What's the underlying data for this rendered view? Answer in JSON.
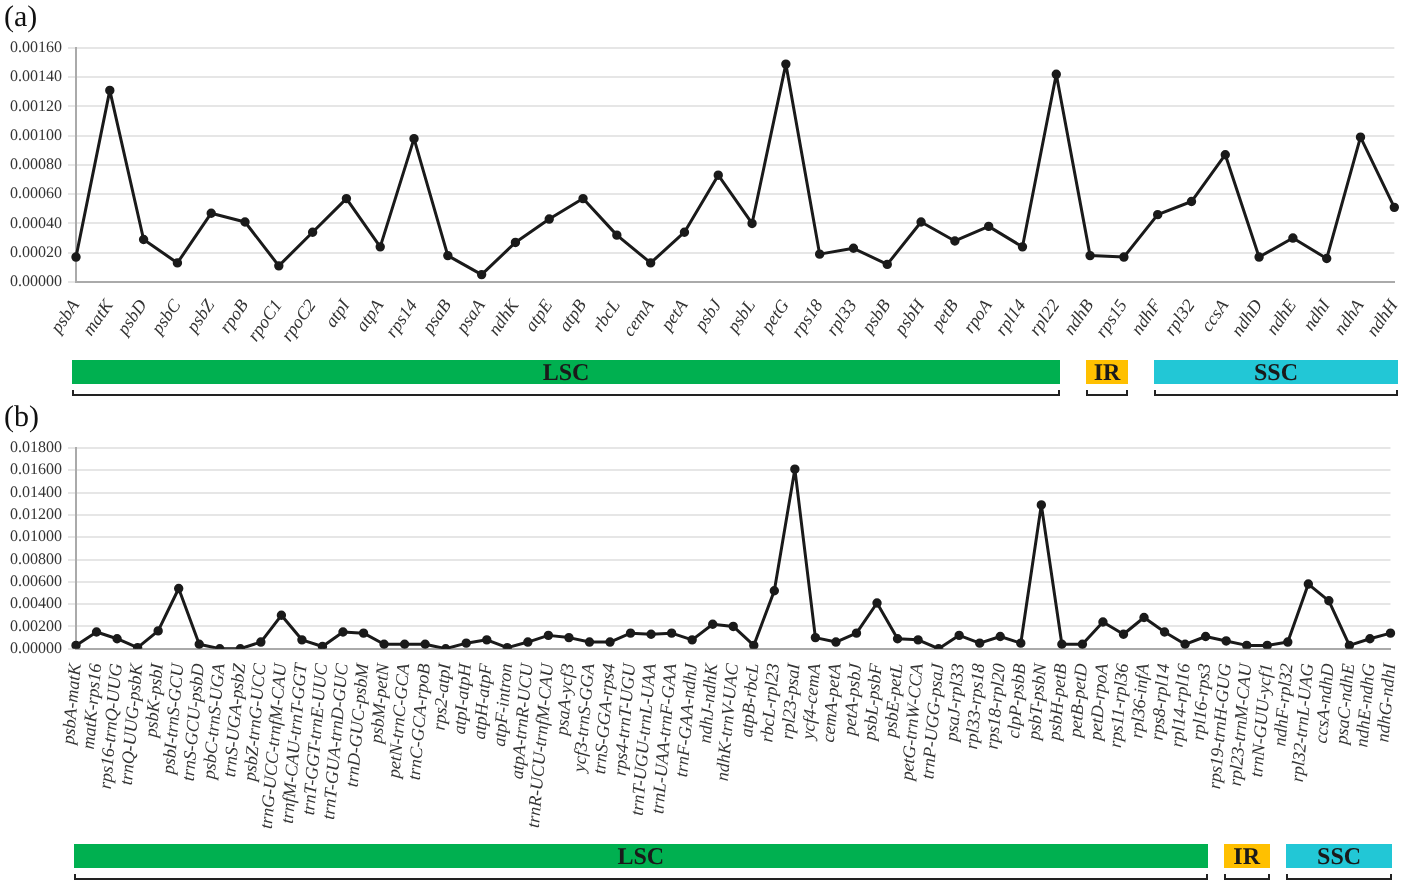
{
  "chart_data": [
    {
      "type": "line",
      "title": "(a)",
      "categories": [
        "psbA",
        "matK",
        "psbD",
        "psbC",
        "psbZ",
        "rpoB",
        "rpoC1",
        "rpoC2",
        "atpI",
        "atpA",
        "rps14",
        "psaB",
        "psaA",
        "ndhK",
        "atpE",
        "atpB",
        "rbcL",
        "cemA",
        "petA",
        "psbJ",
        "psbL",
        "petG",
        "rps18",
        "rpl33",
        "psbB",
        "psbH",
        "petB",
        "rpoA",
        "rpl14",
        "rpl22",
        "ndhB",
        "rps15",
        "ndhF",
        "rpl32",
        "ccsA",
        "ndhD",
        "ndhE",
        "ndhI",
        "ndhA",
        "ndhH"
      ],
      "series": [
        {
          "color": "#1a1a1a",
          "values": [
            0.00017,
            0.00131,
            0.00029,
            0.00013,
            0.00047,
            0.00041,
            0.00011,
            0.00034,
            0.00057,
            0.00024,
            0.00098,
            0.00018,
            5e-05,
            0.00027,
            0.00043,
            0.00057,
            0.00032,
            0.00013,
            0.00034,
            0.00073,
            0.0004,
            0.00149,
            0.00019,
            0.00023,
            0.00012,
            0.00041,
            0.00028,
            0.00038,
            0.00024,
            0.00142,
            0.00018,
            0.00017,
            0.00046,
            0.00055,
            0.00087,
            0.00017,
            0.0003,
            0.00016,
            0.00099,
            0.00051
          ]
        }
      ],
      "ylim": [
        0,
        0.0016
      ],
      "yticks": [
        {
          "value": 0,
          "label": "0.00000"
        },
        {
          "value": 0.0002,
          "label": "0.00020"
        },
        {
          "value": 0.0004,
          "label": "0.00040"
        },
        {
          "value": 0.0006,
          "label": "0.00060"
        },
        {
          "value": 0.0008,
          "label": "0.00080"
        },
        {
          "value": 0.001,
          "label": "0.00100"
        },
        {
          "value": 0.0012,
          "label": "0.00120"
        },
        {
          "value": 0.0014,
          "label": "0.00140"
        },
        {
          "value": 0.0016,
          "label": "0.00160"
        }
      ],
      "grid": "y",
      "legend": false,
      "marker": "circle",
      "line_style": "solid",
      "annotations": [
        "LSC",
        "IR",
        "SSC"
      ]
    },
    {
      "type": "line",
      "title": "(b)",
      "categories": [
        "psbA-matK",
        "matK-rps16",
        "rps16-trnQ-UUG",
        "trnQ-UUG-psbK",
        "psbK-psbI",
        "psbI-trnS-GCU",
        "trnS-GCU-psbD",
        "psbC-trnS-UGA",
        "trnS-UGA-psbZ",
        "psbZ-trnG-UCC",
        "trnG-UCC-trnfM-CAU",
        "trnfM-CAU-trnT-GGT",
        "trnT-GGT-trnE-UUC",
        "trnT-GUA-trnD-GUC",
        "trnD-GUC-psbM",
        "psbM-petN",
        "petN-trnC-GCA",
        "trnC-GCA-rpoB",
        "rps2-atpI",
        "atpI-atpH",
        "atpH-atpF",
        "atpF-intron",
        "atpA-trnR-UCU",
        "trnR-UCU-trnfM-CAU",
        "psaA-ycf3",
        "ycf3-trnS-GGA",
        "trnS-GGA-rps4",
        "rps4-trnT-UGU",
        "trnT-UGU-trnL-UAA",
        "trnL-UAA-trnF-GAA",
        "trnF-GAA-ndhJ",
        "ndhJ-ndhK",
        "ndhK-trnV-UAC",
        "atpB-rbcL",
        "rbcL-rpl23",
        "rpl23-psaI",
        "ycf4-cemA",
        "cemA-petA",
        "petA-psbJ",
        "psbL-psbF",
        "psbE-petL",
        "petG-trnW-CCA",
        "trnP-UGG-psaJ",
        "psaJ-rpl33",
        "rpl33-rps18",
        "rps18-rpl20",
        "clpP-psbB",
        "psbT-psbN",
        "psbH-petB",
        "petB-petD",
        "petD-rpoA",
        "rps11-rpl36",
        "rpl36-infA",
        "rps8-rpl14",
        "rpl14-rpl16",
        "rpl16-rps3",
        "rps19-trnH-GUG",
        "rpl23-trnM-CAU",
        "trnN-GUU-ycf1",
        "ndhF-rpl32",
        "rpl32-trnL-UAG",
        "ccsA-ndhD",
        "psaC-ndhE",
        "ndhE-ndhG",
        "ndhG-ndhI"
      ],
      "series": [
        {
          "color": "#1a1a1a",
          "values": [
            0.0003,
            0.0015,
            0.0009,
            0.0001,
            0.0016,
            0.0054,
            0.0004,
            0.0,
            0.0,
            0.0006,
            0.003,
            0.0008,
            0.0002,
            0.0015,
            0.0014,
            0.0004,
            0.0004,
            0.0004,
            0.0,
            0.0005,
            0.0008,
            0.0001,
            0.0006,
            0.0012,
            0.001,
            0.0006,
            0.0006,
            0.0014,
            0.0013,
            0.0014,
            0.0008,
            0.0022,
            0.002,
            0.0003,
            0.0052,
            0.0161,
            0.001,
            0.0006,
            0.0014,
            0.0041,
            0.0009,
            0.0008,
            0.0,
            0.0012,
            0.0005,
            0.0011,
            0.0005,
            0.0129,
            0.0004,
            0.0004,
            0.0024,
            0.0013,
            0.0028,
            0.0015,
            0.0004,
            0.0011,
            0.0007,
            0.0003,
            0.0003,
            0.0006,
            0.0058,
            0.0043,
            0.0003,
            0.0009,
            0.0014
          ]
        }
      ],
      "ylim": [
        0,
        0.018
      ],
      "yticks": [
        {
          "value": 0,
          "label": "0.00000"
        },
        {
          "value": 0.002,
          "label": "0.00200"
        },
        {
          "value": 0.004,
          "label": "0.00400"
        },
        {
          "value": 0.006,
          "label": "0.00600"
        },
        {
          "value": 0.008,
          "label": "0.00800"
        },
        {
          "value": 0.01,
          "label": "0.01000"
        },
        {
          "value": 0.012,
          "label": "0.01200"
        },
        {
          "value": 0.014,
          "label": "0.01400"
        },
        {
          "value": 0.016,
          "label": "0.01600"
        },
        {
          "value": 0.018,
          "label": "0.01800"
        }
      ],
      "grid": "y",
      "legend": false,
      "marker": "circle",
      "line_style": "solid",
      "annotations": [
        "LSC",
        "IR",
        "SSC"
      ]
    }
  ]
}
